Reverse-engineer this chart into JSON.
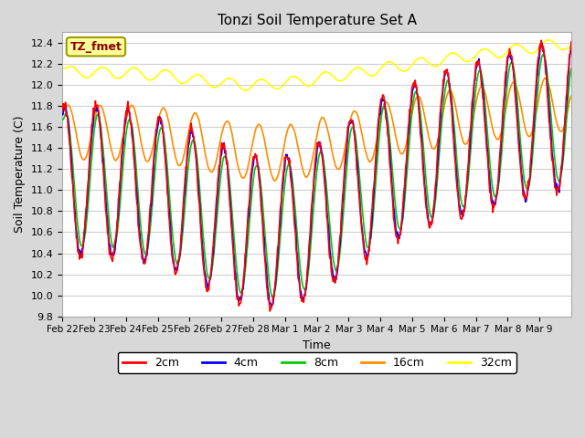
{
  "title": "Tonzi Soil Temperature Set A",
  "xlabel": "Time",
  "ylabel": "Soil Temperature (C)",
  "ylim": [
    9.8,
    12.5
  ],
  "annotation_text": "TZ_fmet",
  "annotation_color": "#8B0000",
  "annotation_bg": "#FFFF99",
  "annotation_border": "#999900",
  "x_tick_labels": [
    "Feb 22",
    "Feb 23",
    "Feb 24",
    "Feb 25",
    "Feb 26",
    "Feb 27",
    "Feb 28",
    "Mar 1",
    "Mar 2",
    "Mar 3",
    "Mar 4",
    "Mar 5",
    "Mar 6",
    "Mar 7",
    "Mar 8",
    "Mar 9"
  ],
  "colors": {
    "2cm": "#FF0000",
    "4cm": "#0000FF",
    "8cm": "#00CC00",
    "16cm": "#FF8C00",
    "32cm": "#FFFF00"
  },
  "legend_labels": [
    "2cm",
    "4cm",
    "8cm",
    "16cm",
    "32cm"
  ],
  "bg_color": "#D8D8D8",
  "plot_bg_color": "#FFFFFF",
  "grid_color": "#D0D0D0",
  "num_points": 800
}
